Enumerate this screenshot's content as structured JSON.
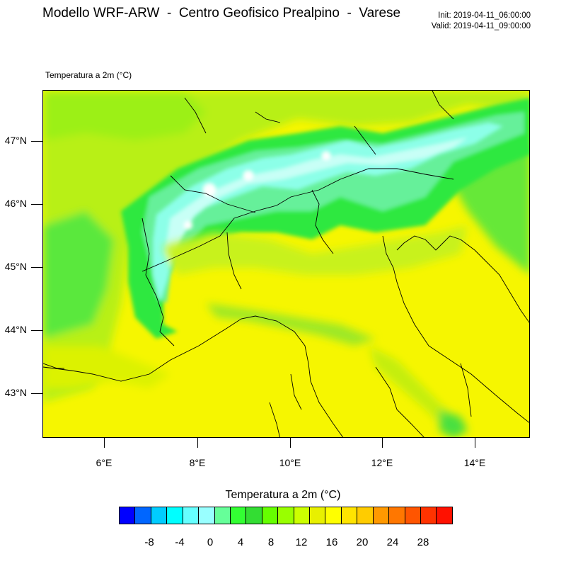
{
  "header": {
    "title": "Modello WRF-ARW  -  Centro Geofisico Prealpino  -  Varese",
    "init": "Init: 2019-04-11_06:00:00",
    "valid": "Valid: 2019-04-11_09:00:00"
  },
  "field_label": "Temperatura a 2m (°C)",
  "map": {
    "lat_labels": [
      "47°N",
      "46°N",
      "45°N",
      "44°N",
      "43°N"
    ],
    "lon_labels": [
      "6°E",
      "8°E",
      "10°E",
      "12°E",
      "14°E"
    ],
    "lat_values": [
      47,
      46,
      45,
      44,
      43
    ],
    "lon_values": [
      6,
      8,
      10,
      12,
      14
    ],
    "lat_range": [
      42.25,
      47.8
    ],
    "lon_range": [
      4.8,
      15.15
    ],
    "dominant_color": "#f6f600",
    "regions": [
      {
        "name": "alpine-ridge",
        "color": "#2ee840"
      },
      {
        "name": "high-alps",
        "color": "#8cffe8"
      },
      {
        "name": "glaciers",
        "color": "#ffffff"
      },
      {
        "name": "prealps",
        "color": "#c8f21a"
      },
      {
        "name": "apennines",
        "color": "#d6f000"
      }
    ]
  },
  "colorbar": {
    "title": "Temperatura a 2m  (°C)",
    "colors": [
      "#0000ff",
      "#0066ff",
      "#00ccff",
      "#00ffff",
      "#66ffff",
      "#99ffff",
      "#66ff99",
      "#33ff33",
      "#33dd33",
      "#66ff00",
      "#99ff00",
      "#ccff00",
      "#e8f000",
      "#ffff00",
      "#ffe400",
      "#ffcc00",
      "#ff9900",
      "#ff7700",
      "#ff5500",
      "#ff3300",
      "#ff1100"
    ],
    "labels": [
      "-8",
      "-4",
      "0",
      "4",
      "8",
      "12",
      "16",
      "20",
      "24",
      "28"
    ]
  }
}
